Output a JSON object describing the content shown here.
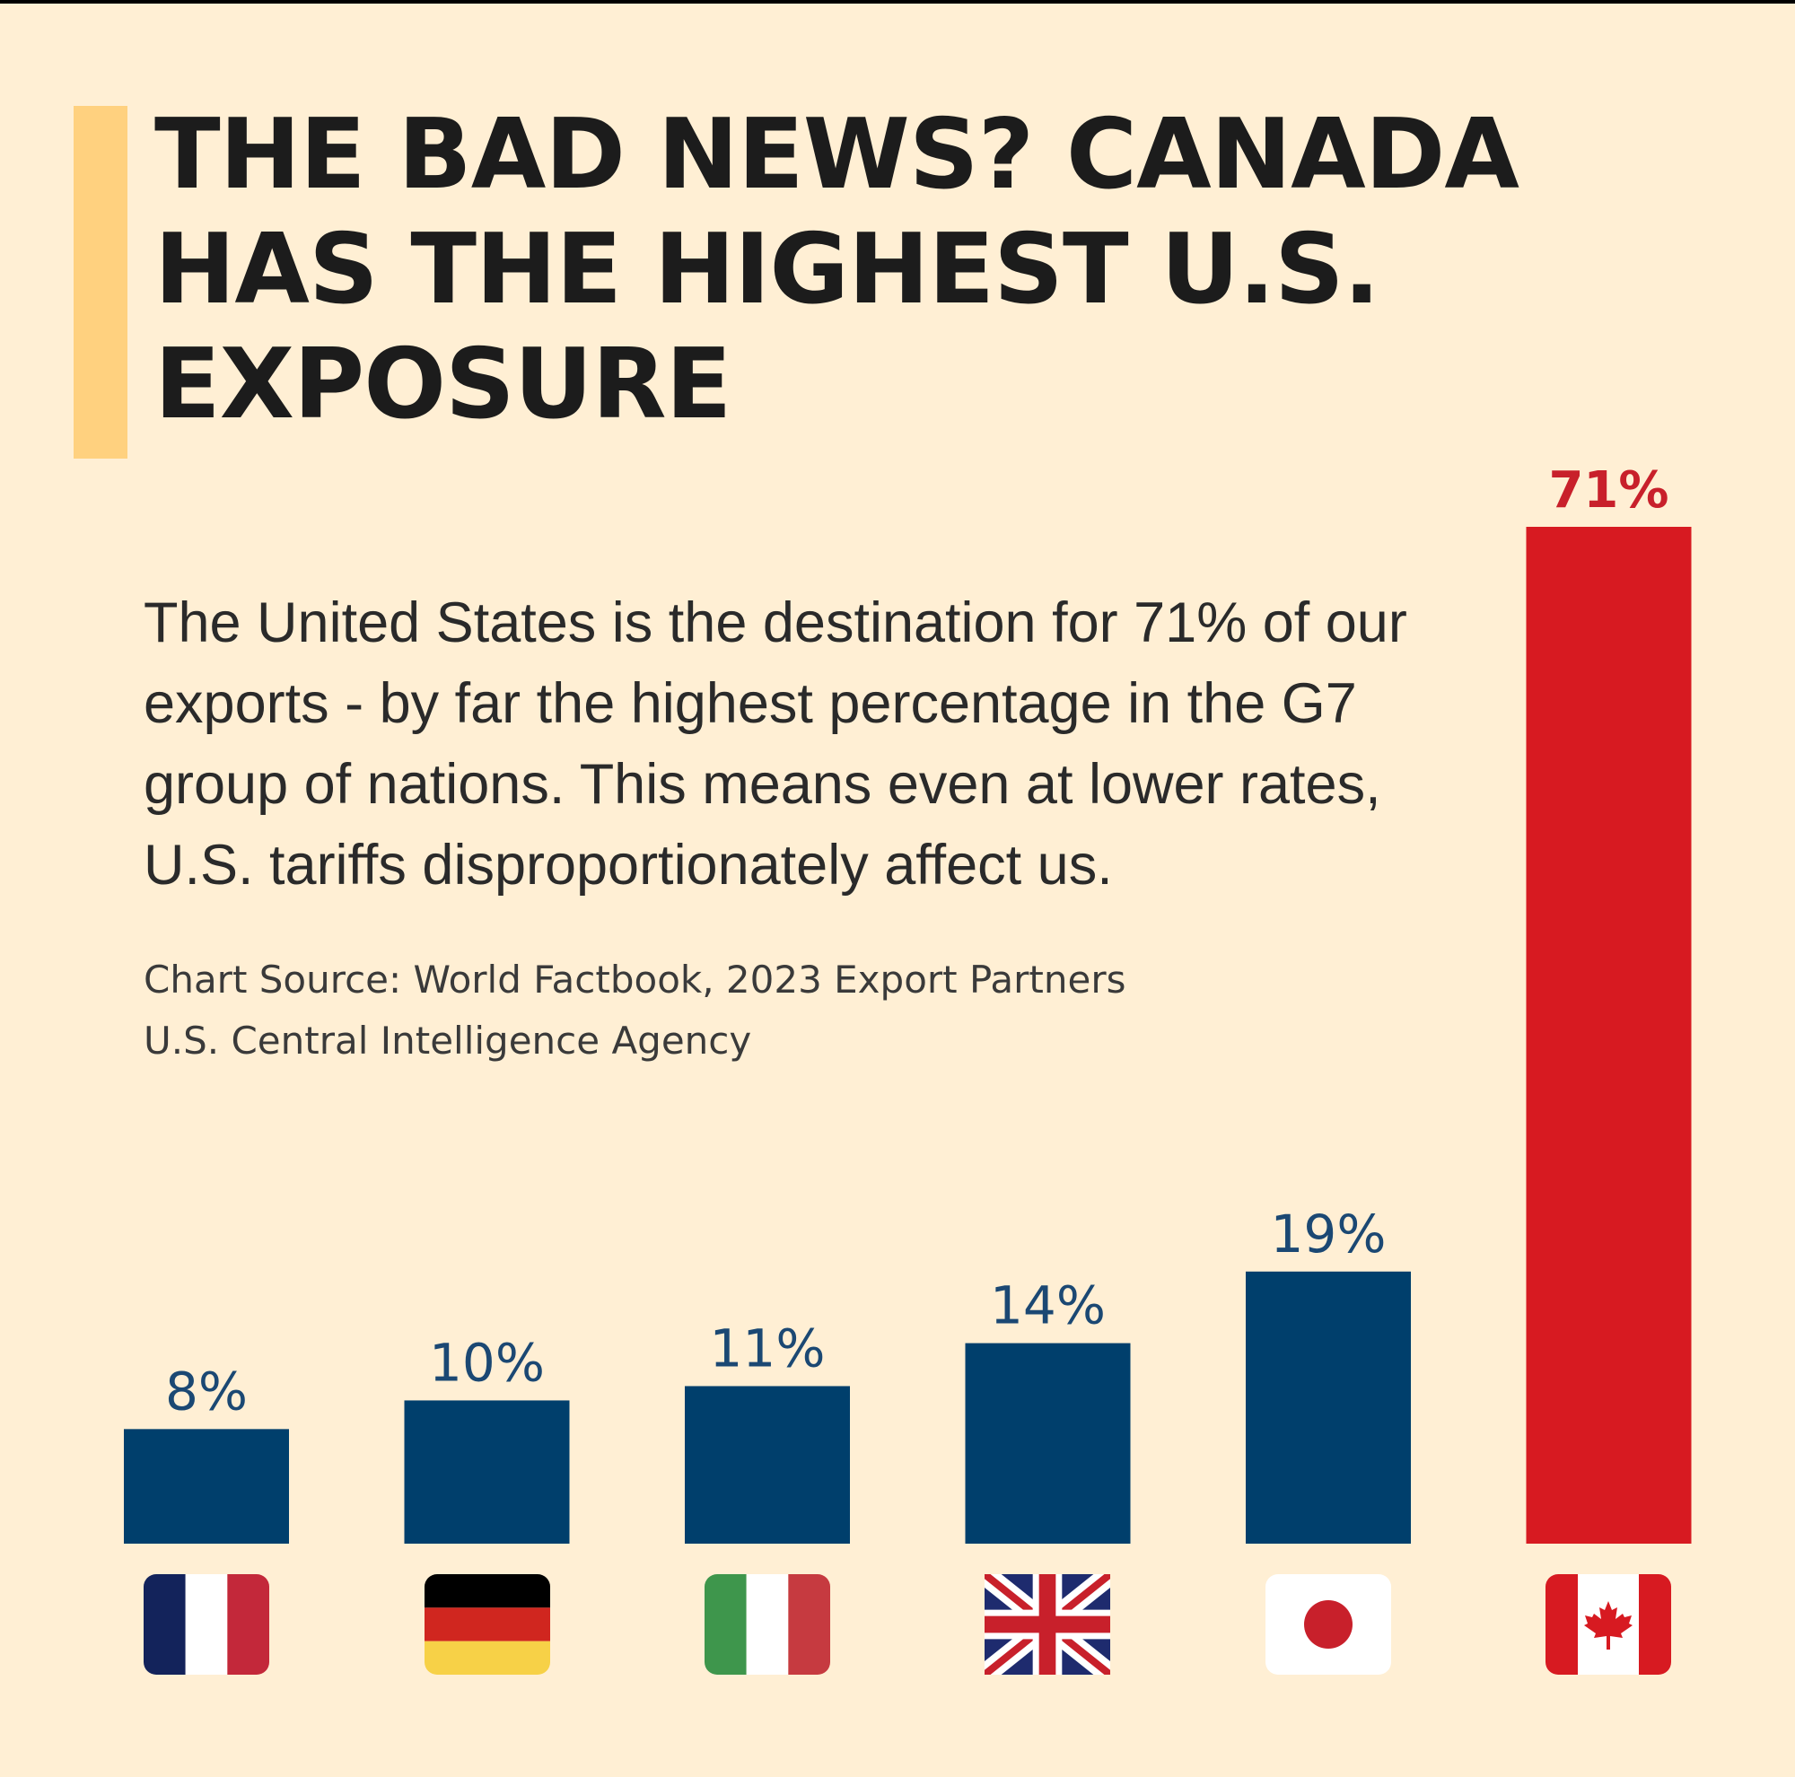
{
  "headline": {
    "line1": "THE BAD NEWS? CANADA",
    "line2": "HAS THE HIGHEST U.S.",
    "line3": "EXPOSURE"
  },
  "description": {
    "line1": "The United States is the destination for 71% of our",
    "line2": "exports - by far the highest percentage in the G7",
    "line3": "group of nations. This means even at lower rates,",
    "line4": "U.S. tariffs disproportionately affect us."
  },
  "source": {
    "line1": "Chart Source: World Factbook, 2023 Export Partners",
    "line2": "U.S. Central Intelligence Agency"
  },
  "colors": {
    "background": "#FFEFD4",
    "accent": "#FFD17F",
    "bar_default": "#003F6C",
    "bar_highlight": "#D71A21",
    "label_default": "#1B4873",
    "label_highlight": "#C8202B"
  },
  "chart_data": {
    "type": "bar",
    "title": "THE BAD NEWS? CANADA HAS THE HIGHEST U.S. EXPOSURE",
    "xlabel": "",
    "ylabel": "",
    "ylim": [
      0,
      71
    ],
    "grid": false,
    "categories": [
      "France",
      "Germany",
      "Italy",
      "United Kingdom",
      "Japan",
      "Canada"
    ],
    "values": [
      8,
      10,
      11,
      14,
      19,
      71
    ],
    "labels": [
      "8%",
      "10%",
      "11%",
      "14%",
      "19%",
      "71%"
    ],
    "highlight": "Canada",
    "category_icons": [
      "france-flag-icon",
      "germany-flag-icon",
      "italy-flag-icon",
      "uk-flag-icon",
      "japan-flag-icon",
      "canada-flag-icon"
    ]
  }
}
